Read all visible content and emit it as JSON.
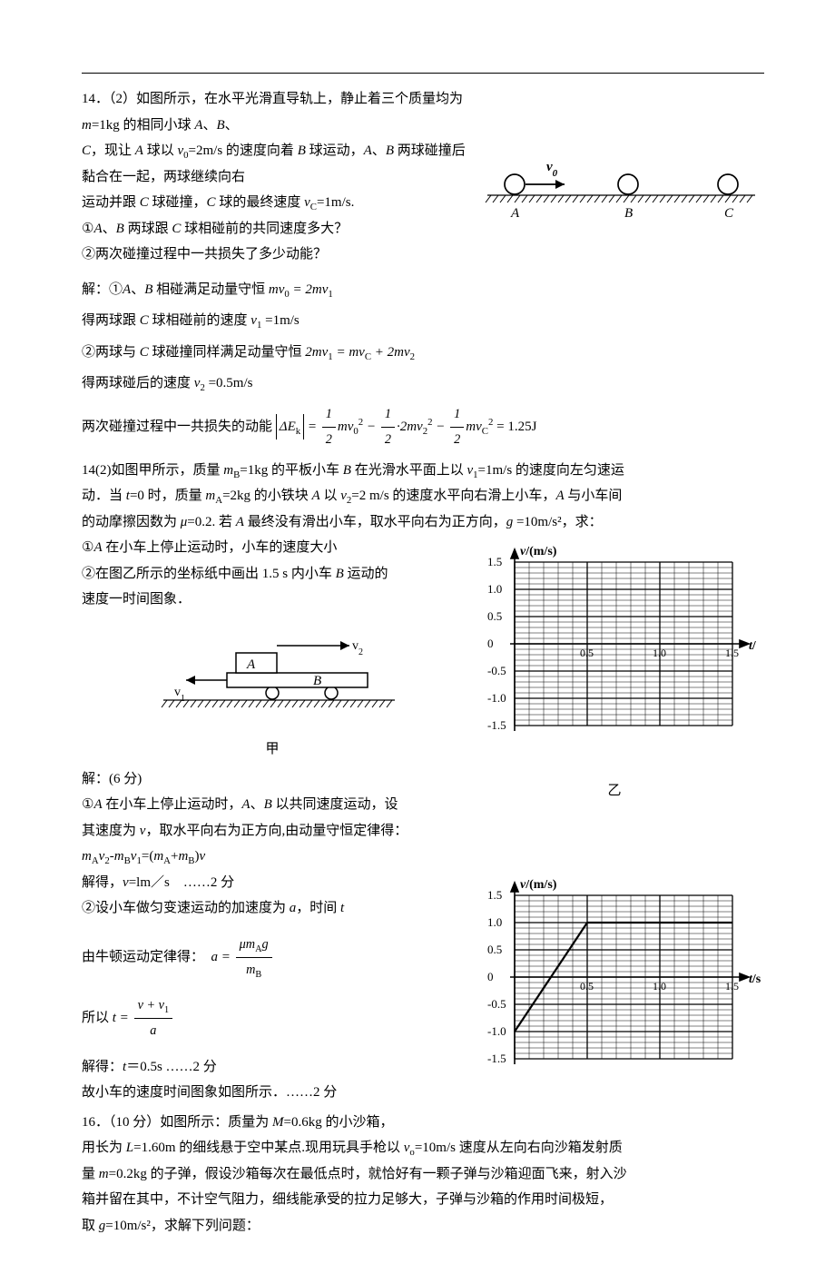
{
  "p14a": {
    "line1": "14．（2）如图所示，在水平光滑直导轨上，静止着三个质量均为 ",
    "line1b": "=1kg 的相同小球 ",
    "line1c": "、",
    "line2a": "，现让 ",
    "line2b": " 球以 ",
    "line2c": "=2m/s 的速度向着 ",
    "line2d": " 球运动，",
    "line2e": " 两球碰撞后黏合在一起，两球继续向右",
    "line3": "运动并跟 ",
    "line3b": " 球碰撞，",
    "line3c": " 球的最终速度 ",
    "line3d": "=1m/s.",
    "q1": "①",
    "q1b": "、",
    "q1c": " 两球跟 ",
    "q1d": " 球相碰前的共同速度多大？",
    "q2": "②两次碰撞过程中一共损失了多少动能？",
    "ans1a": "解：①",
    "ans1b": " 相碰满足动量守恒 ",
    "ans2": "得两球跟 ",
    "ans2b": " 球相碰前的速度 ",
    "ans2c": " =1m/s",
    "ans3": "②两球与 ",
    "ans3b": " 球碰撞同样满足动量守恒 ",
    "ans4": "得两球碰后的速度 ",
    "ans4b": " =0.5m/s",
    "ans5": "两次碰撞过程中一共损失的动能",
    "ek_val": "= 1.25J"
  },
  "dia_balls": {
    "labels": [
      "A",
      "B",
      "C"
    ],
    "v_label": "v",
    "bg": "#ffffff"
  },
  "p14b": {
    "line1a": "14(2)如图甲所示，质量 ",
    "line1b": "=1kg 的平板小车 ",
    "line1c": " 在光滑水平面上以 ",
    "line1d": "=1m/s 的速度向左匀速运",
    "line2a": "动．当 ",
    "line2b": "=0 时，质量 ",
    "line2c": "=2kg 的小铁块 ",
    "line2d": " 以 ",
    "line2e": "=2 m/s 的速度水平向右滑上小车，",
    "line2f": " 与小车间",
    "line3a": "的动摩擦因数为 ",
    "line3b": "=0.2. 若 ",
    "line3c": " 最终没有滑出小车，取水平向右为正方向，",
    "line3d": " =10m/s²，求：",
    "q1a": "①",
    "q1b": " 在小车上停止运动时，小车的速度大小",
    "q2a": "②在图乙所示的坐标纸中画出 1.5 s 内小车 ",
    "q2b": " 运动的",
    "q2c": "速度一时间图象．",
    "s1": "解：(6 分)",
    "s2a": "①",
    "s2b": " 在小车上停止运动时，",
    "s2c": " 以共同速度运动，设",
    "s3": "其速度为 ",
    "s3b": "，取水平向右为正方向,由动量守恒定律得：",
    "s4eq": "m",
    "s5": "解得，",
    "s5b": "=lm／s　……2 分",
    "s6": "②设小车做匀变速运动的加速度为 ",
    "s6b": "，时间 ",
    "s7": "由牛顿运动定律得：",
    "s8": "所以 ",
    "s9": "解得：",
    "s9b": "＝0.5s ……2 分",
    "s10": "故小车的速度时间图象如图所示．……2 分"
  },
  "cart_dia": {
    "labels": {
      "A": "A",
      "B": "B",
      "v1": "v",
      "v2": "v",
      "caption": "甲"
    }
  },
  "graph": {
    "ylabel": "v/(m/s)",
    "xlabeltop": "t/",
    "xlabelbot": "t/s",
    "xticks": [
      "0.5",
      "1.0",
      "1.5"
    ],
    "xticks_bot": [
      "0.5",
      "1.0",
      "1.5"
    ],
    "yticks_pos": [
      "1.5",
      "1.0",
      "0.5",
      "0"
    ],
    "yticks_neg": [
      "-0.5",
      "-1.0",
      "-1.5"
    ],
    "caption": "乙",
    "grid_color": "#000000",
    "bg_color": "#ffffff",
    "n_major_x": 3,
    "n_major_y": 7,
    "minor_div": 5,
    "line": {
      "pts": [
        [
          0,
          -1.0
        ],
        [
          0.5,
          1.0
        ],
        [
          1.5,
          1.0
        ]
      ],
      "stroke": "#000",
      "width": 2
    }
  },
  "p16": {
    "line1": "16．（10 分）如图所示：质量为 ",
    "line1b": "=0.6kg 的小沙箱，",
    "line2a": "用长为 ",
    "line2b": "=1.60m 的细线悬于空中某点.现用玩具手枪以 ",
    "line2c": "=10m/s 速度从左向右向沙箱发射质",
    "line3a": "量 ",
    "line3b": "=0.2kg 的子弹，假设沙箱每次在最低点时，就恰好有一颗子弹与沙箱迎面飞来，射入沙",
    "line4": "箱并留在其中，不计空气阻力，细线能承受的拉力足够大，子弹与沙箱的作用时间极短，",
    "line5a": "取 ",
    "line5b": "=10m/s²，求解下列问题："
  }
}
